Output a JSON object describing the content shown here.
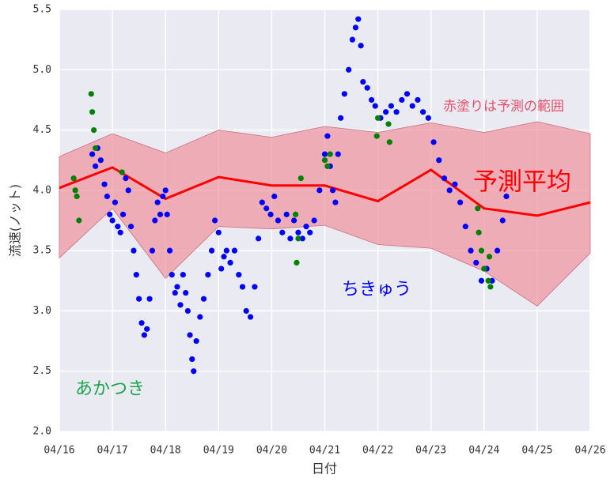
{
  "chart_data": {
    "type": "scatter",
    "xlabel": "日付",
    "ylabel": "流速(ノット)",
    "xlim": [
      16,
      26
    ],
    "xticks": [
      {
        "value": 16,
        "label": "04/16"
      },
      {
        "value": 17,
        "label": "04/17"
      },
      {
        "value": 18,
        "label": "04/18"
      },
      {
        "value": 19,
        "label": "04/19"
      },
      {
        "value": 20,
        "label": "04/20"
      },
      {
        "value": 21,
        "label": "04/21"
      },
      {
        "value": 22,
        "label": "04/22"
      },
      {
        "value": 23,
        "label": "04/23"
      },
      {
        "value": 24,
        "label": "04/24"
      },
      {
        "value": 25,
        "label": "04/25"
      },
      {
        "value": 26,
        "label": "04/26"
      }
    ],
    "ylim": [
      2.0,
      5.5
    ],
    "yticks": [
      {
        "value": 2.0,
        "label": "2.0"
      },
      {
        "value": 2.5,
        "label": "2.5"
      },
      {
        "value": 3.0,
        "label": "3.0"
      },
      {
        "value": 3.5,
        "label": "3.5"
      },
      {
        "value": 4.0,
        "label": "4.0"
      },
      {
        "value": 4.5,
        "label": "4.5"
      },
      {
        "value": 5.0,
        "label": "5.0"
      },
      {
        "value": 5.5,
        "label": "5.5"
      }
    ],
    "grid": true,
    "series": [
      {
        "name": "赤塗りは予測の範囲",
        "type": "band",
        "color": "#f08a96",
        "x": [
          16,
          17,
          18,
          19,
          20,
          21,
          22,
          23,
          24,
          25,
          26
        ],
        "upper": [
          4.28,
          4.47,
          4.31,
          4.5,
          4.44,
          4.53,
          4.48,
          4.56,
          4.48,
          4.57,
          4.47
        ],
        "lower": [
          3.44,
          3.85,
          3.27,
          3.7,
          3.68,
          3.71,
          3.55,
          3.52,
          3.33,
          3.04,
          3.48
        ]
      },
      {
        "name": "予測平均",
        "type": "line",
        "color": "#ff0000",
        "x": [
          16,
          17,
          18,
          19,
          20,
          21,
          22,
          23,
          24,
          25,
          26
        ],
        "values": [
          4.02,
          4.19,
          3.93,
          4.11,
          4.04,
          4.04,
          3.91,
          4.17,
          3.85,
          3.79,
          3.9
        ]
      },
      {
        "name": "ちきゅう",
        "type": "scatter",
        "color": "#0000ff",
        "x": [
          16.62,
          16.68,
          16.72,
          16.78,
          16.85,
          16.9,
          16.95,
          17.0,
          17.05,
          17.1,
          17.15,
          17.2,
          17.25,
          17.3,
          17.35,
          17.4,
          17.45,
          17.5,
          17.55,
          17.6,
          17.65,
          17.7,
          17.75,
          17.8,
          17.85,
          17.9,
          17.95,
          18.0,
          18.03,
          18.08,
          18.12,
          18.18,
          18.22,
          18.28,
          18.33,
          18.38,
          18.42,
          18.46,
          18.5,
          18.53,
          18.58,
          18.65,
          18.72,
          18.8,
          18.87,
          18.93,
          19.0,
          19.05,
          19.1,
          19.15,
          19.22,
          19.3,
          19.38,
          19.45,
          19.52,
          19.6,
          19.68,
          19.75,
          19.82,
          19.9,
          19.98,
          20.05,
          20.12,
          20.2,
          20.28,
          20.35,
          20.42,
          20.5,
          20.58,
          20.65,
          20.72,
          20.8,
          20.9,
          21.0,
          21.05,
          21.1,
          21.15,
          21.2,
          21.25,
          21.3,
          21.37,
          21.45,
          21.52,
          21.58,
          21.63,
          21.68,
          21.72,
          21.8,
          21.88,
          21.95,
          22.05,
          22.15,
          22.25,
          22.35,
          22.45,
          22.55,
          22.65,
          22.75,
          22.85,
          22.95,
          23.05,
          23.15,
          23.25,
          23.35,
          23.45,
          23.55,
          23.65,
          23.75,
          23.85,
          23.95,
          24.05,
          24.15,
          24.25,
          24.35,
          24.42
        ],
        "values": [
          4.3,
          4.2,
          4.35,
          4.25,
          4.05,
          3.95,
          3.8,
          3.75,
          3.9,
          3.7,
          3.65,
          3.8,
          4.1,
          4.0,
          3.7,
          3.5,
          3.3,
          3.1,
          2.9,
          2.8,
          2.85,
          3.1,
          3.5,
          3.75,
          3.9,
          3.8,
          3.95,
          4.0,
          3.8,
          3.5,
          3.3,
          3.15,
          3.2,
          3.05,
          3.3,
          3.15,
          3.0,
          2.8,
          2.6,
          2.5,
          2.75,
          2.95,
          3.1,
          3.3,
          3.5,
          3.75,
          3.65,
          3.35,
          3.45,
          3.5,
          3.4,
          3.5,
          3.3,
          3.2,
          3.0,
          2.95,
          3.2,
          3.6,
          3.9,
          3.85,
          3.8,
          3.95,
          3.75,
          3.65,
          3.8,
          3.6,
          3.75,
          3.65,
          3.6,
          3.7,
          3.65,
          3.75,
          4.0,
          4.3,
          4.45,
          4.2,
          4.0,
          3.9,
          4.3,
          4.6,
          4.8,
          5.0,
          5.25,
          5.35,
          5.42,
          5.2,
          4.9,
          4.85,
          4.75,
          4.7,
          4.6,
          4.65,
          4.7,
          4.65,
          4.75,
          4.8,
          4.7,
          4.75,
          4.65,
          4.6,
          4.4,
          4.25,
          4.1,
          4.0,
          4.05,
          3.9,
          3.7,
          3.5,
          3.4,
          3.25,
          3.35,
          3.25,
          3.5,
          3.75,
          3.95
        ]
      },
      {
        "name": "あかつき",
        "type": "scatter",
        "color": "#008000",
        "x": [
          16.27,
          16.3,
          16.33,
          16.37,
          16.6,
          16.62,
          16.65,
          16.68,
          17.18,
          20.45,
          20.5,
          20.47,
          20.55,
          21.0,
          21.05,
          21.1,
          22.0,
          21.98,
          22.2,
          22.22,
          23.88,
          23.9,
          23.95,
          24.0,
          24.08,
          24.12,
          24.1
        ],
        "values": [
          4.1,
          4.0,
          3.95,
          3.75,
          4.8,
          4.65,
          4.5,
          4.35,
          4.15,
          3.8,
          3.6,
          3.4,
          4.1,
          4.25,
          4.2,
          4.3,
          4.6,
          4.45,
          4.55,
          4.4,
          3.85,
          3.65,
          3.5,
          3.35,
          3.25,
          3.2,
          3.45
        ]
      }
    ]
  }
}
